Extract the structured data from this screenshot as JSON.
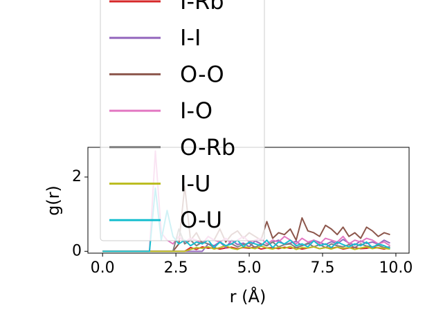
{
  "chart_data": {
    "type": "line",
    "xlabel": "r (Å)",
    "ylabel": "g(r)",
    "x": [
      0.0,
      0.2,
      0.4,
      0.6,
      0.8,
      1.0,
      1.2,
      1.4,
      1.6,
      1.8,
      2.0,
      2.2,
      2.4,
      2.6,
      2.8,
      3.0,
      3.2,
      3.4,
      3.6,
      3.8,
      4.0,
      4.2,
      4.4,
      4.6,
      4.8,
      5.0,
      5.2,
      5.4,
      5.6,
      5.8,
      6.0,
      6.2,
      6.4,
      6.6,
      6.8,
      7.0,
      7.2,
      7.4,
      7.6,
      7.8,
      8.0,
      8.2,
      8.4,
      8.6,
      8.8,
      9.0,
      9.2,
      9.4,
      9.6,
      9.8
    ],
    "xlim": [
      -0.5,
      10.45
    ],
    "ylim": [
      -0.05,
      2.8
    ],
    "xticks": [
      {
        "value": 0,
        "label": "0.0"
      },
      {
        "value": 2.5,
        "label": "2.5"
      },
      {
        "value": 5,
        "label": "5.0"
      },
      {
        "value": 7.5,
        "label": "7.5"
      },
      {
        "value": 10,
        "label": "10.0"
      }
    ],
    "yticks": [
      0,
      2
    ],
    "series": [
      {
        "name": "I-Rb",
        "color": "#d62728",
        "values": [
          0,
          0,
          0,
          0,
          0,
          0,
          0,
          0,
          0,
          0,
          0,
          0,
          0,
          0,
          0,
          0.1,
          0.05,
          0.12,
          0.08,
          0.1,
          0.06,
          0.09,
          0.11,
          0.07,
          0.1,
          0.08,
          0.12,
          0.06,
          0.09,
          0.1,
          0.07,
          0.11,
          0.08,
          0.1,
          0.06,
          0.09,
          0.12,
          0.07,
          0.1,
          0.08,
          0.11,
          0.06,
          0.09,
          0.1,
          0.07,
          0.08,
          0.11,
          0.09,
          0.06,
          0.1
        ]
      },
      {
        "name": "I-I",
        "color": "#9467bd",
        "values": [
          0,
          0,
          0,
          0,
          0,
          0,
          0,
          0,
          0,
          0,
          0,
          0,
          0,
          0,
          0,
          0,
          0,
          0,
          0.2,
          0.15,
          0.25,
          0.1,
          0.3,
          0.18,
          0.22,
          0.12,
          0.28,
          0.2,
          0.15,
          0.25,
          0.3,
          0.18,
          0.22,
          0.27,
          0.15,
          0.2,
          0.3,
          0.24,
          0.18,
          0.26,
          0.2,
          0.32,
          0.22,
          0.17,
          0.28,
          0.21,
          0.25,
          0.19,
          0.3,
          0.22
        ]
      },
      {
        "name": "O-O",
        "color": "#8c564b",
        "values": [
          0,
          0,
          0,
          0,
          0,
          0,
          0,
          0,
          0,
          0,
          0,
          0,
          0,
          0.2,
          1.75,
          0.3,
          0.5,
          0.2,
          0.4,
          0.3,
          0.6,
          0.25,
          0.45,
          0.55,
          0.35,
          0.5,
          0.4,
          0.3,
          0.8,
          0.35,
          0.5,
          0.45,
          0.6,
          0.3,
          0.9,
          0.55,
          0.5,
          0.4,
          0.7,
          0.6,
          0.45,
          0.65,
          0.4,
          0.5,
          0.35,
          0.65,
          0.55,
          0.4,
          0.5,
          0.45
        ]
      },
      {
        "name": "I-O",
        "color": "#e377c2",
        "values": [
          0,
          0,
          0,
          0,
          0,
          0,
          0,
          0,
          0,
          2.7,
          0.5,
          0.3,
          0.2,
          0.4,
          0.25,
          0.35,
          0.3,
          0.2,
          0.4,
          0.3,
          0.25,
          0.35,
          0.2,
          0.3,
          0.4,
          0.25,
          0.3,
          0.35,
          0.2,
          0.3,
          0.25,
          0.4,
          0.3,
          0.2,
          0.35,
          0.25,
          0.3,
          0.2,
          0.35,
          0.3,
          0.25,
          0.4,
          0.2,
          0.3,
          0.25,
          0.35,
          0.3,
          0.2,
          0.25,
          0.15
        ]
      },
      {
        "name": "O-Rb",
        "color": "#7f7f7f",
        "values": [
          0,
          0,
          0,
          0,
          0,
          0,
          0,
          0,
          0,
          0,
          0,
          0,
          0,
          0.6,
          0.2,
          0.3,
          0.15,
          0.25,
          0.2,
          0.1,
          0.25,
          0.15,
          0.2,
          0.12,
          0.18,
          0.22,
          0.1,
          0.2,
          0.15,
          0.25,
          0.12,
          0.18,
          0.2,
          0.1,
          0.15,
          0.22,
          0.12,
          0.18,
          0.1,
          0.2,
          0.15,
          0.12,
          0.18,
          0.1,
          0.2,
          0.14,
          0.12,
          0.16,
          0.1,
          0.12
        ]
      },
      {
        "name": "I-U",
        "color": "#bcbd22",
        "values": [
          0,
          0,
          0,
          0,
          0,
          0,
          0,
          0,
          0,
          0,
          0,
          0,
          0,
          0,
          0,
          0.05,
          0.1,
          0.08,
          0.12,
          0.06,
          0.1,
          0.15,
          0.08,
          0.05,
          0.12,
          0.1,
          0.07,
          0.14,
          0.09,
          0.06,
          0.11,
          0.08,
          0.13,
          0.05,
          0.1,
          0.09,
          0.12,
          0.07,
          0.1,
          0.06,
          0.11,
          0.08,
          0.1,
          0.05,
          0.09,
          0.12,
          0.07,
          0.1,
          0.08,
          0.06
        ]
      },
      {
        "name": "O-U",
        "color": "#17becf",
        "values": [
          0,
          0,
          0,
          0,
          0,
          0,
          0,
          0,
          0,
          1.7,
          0.3,
          1.1,
          0.4,
          0.2,
          0.3,
          0.15,
          0.25,
          0.2,
          0.3,
          0.1,
          0.25,
          0.15,
          0.2,
          0.3,
          0.12,
          0.25,
          0.2,
          0.15,
          0.3,
          0.1,
          0.25,
          0.2,
          0.3,
          0.15,
          0.2,
          0.12,
          0.28,
          0.15,
          0.2,
          0.1,
          0.25,
          0.18,
          0.12,
          0.2,
          0.15,
          0.25,
          0.1,
          0.2,
          0.15,
          0.08
        ]
      }
    ]
  }
}
